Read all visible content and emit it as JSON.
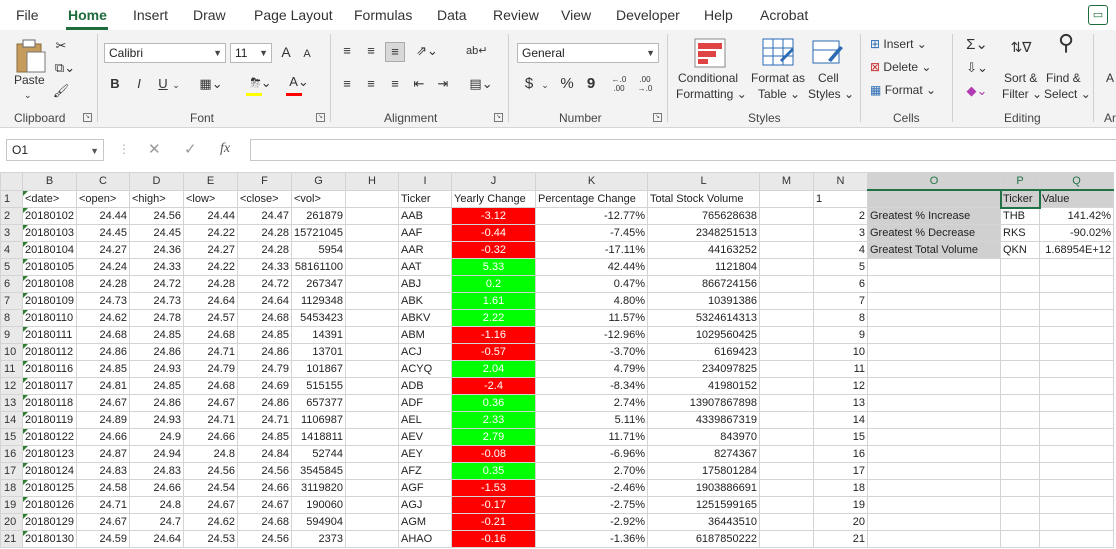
{
  "menu": {
    "tabs": [
      "File",
      "Home",
      "Insert",
      "Draw",
      "Page Layout",
      "Formulas",
      "Data",
      "Review",
      "View",
      "Developer",
      "Help",
      "Acrobat"
    ],
    "active": "Home",
    "comment_icon": "comment-icon"
  },
  "ribbon": {
    "clipboard": {
      "label": "Clipboard",
      "paste": "Paste"
    },
    "font": {
      "label": "Font",
      "name": "Calibri",
      "size": "11",
      "bold": "B",
      "italic": "I",
      "underline": "U",
      "grow": "A",
      "shrink": "A",
      "fill_color": "#ffff00",
      "font_color": "#ff0000"
    },
    "alignment": {
      "label": "Alignment"
    },
    "number": {
      "label": "Number",
      "format": "General",
      "currency": "$",
      "percent": "%",
      "comma": "9",
      "inc_dec": "←.0 .00",
      "dec_dec": ".00 →.0"
    },
    "styles": {
      "label": "Styles",
      "conditional": "Conditional",
      "conditional2": "Formatting",
      "format_as": "Format as",
      "table": "Table",
      "cell": "Cell",
      "styles_btn": "Styles"
    },
    "cells": {
      "label": "Cells",
      "insert": "Insert",
      "delete": "Delete",
      "format": "Format"
    },
    "editing": {
      "label": "Editing",
      "sort": "Sort &",
      "filter": "Filter",
      "find": "Find &",
      "select": "Select"
    },
    "partial": {
      "a_label": "A",
      "a_label2": "Ar"
    }
  },
  "formula_bar": {
    "name_box": "O1",
    "fx": "fx",
    "value": ""
  },
  "columns": [
    "A",
    "B",
    "C",
    "D",
    "E",
    "F",
    "G",
    "H",
    "I",
    "J",
    "K",
    "L",
    "M",
    "N",
    "O",
    "P",
    "Q"
  ],
  "selected_columns": [
    "O",
    "P",
    "Q"
  ],
  "colors": {
    "negative": "#ff0000",
    "positive": "#00ff00",
    "header_gray": "#d0d0d0",
    "accent": "#217346"
  },
  "rows": [
    {
      "n": "1",
      "b": "<date>",
      "c": "<open>",
      "d": "<high>",
      "e": "<low>",
      "f": "<close>",
      "g": "<vol>",
      "i": "Ticker",
      "j": "Yearly Change",
      "k": "Percentage Change",
      "l": "Total Stock Volume",
      "o": "",
      "p": "Ticker",
      "q": "Value"
    },
    {
      "n": "2",
      "b": "20180102",
      "c": "24.44",
      "d": "24.56",
      "e": "24.44",
      "f": "24.47",
      "g": "261879",
      "i": "AAB",
      "j": "-3.12",
      "k": "-12.77%",
      "l": "765628638",
      "o": "Greatest % Increase",
      "p": "THB",
      "q": "141.42%"
    },
    {
      "n": "3",
      "b": "20180103",
      "c": "24.45",
      "d": "24.45",
      "e": "24.22",
      "f": "24.28",
      "g": "15721045",
      "i": "AAF",
      "j": "-0.44",
      "k": "-7.45%",
      "l": "2348251513",
      "o": "Greatest % Decrease",
      "p": "RKS",
      "q": "-90.02%"
    },
    {
      "n": "4",
      "b": "20180104",
      "c": "24.27",
      "d": "24.36",
      "e": "24.27",
      "f": "24.28",
      "g": "5954",
      "i": "AAR",
      "j": "-0.32",
      "k": "-17.11%",
      "l": "44163252",
      "o": "Greatest Total Volume",
      "p": "QKN",
      "q": "1.68954E+12"
    },
    {
      "n": "5",
      "b": "20180105",
      "c": "24.24",
      "d": "24.33",
      "e": "24.22",
      "f": "24.33",
      "g": "58161100",
      "i": "AAT",
      "j": "5.33",
      "k": "42.44%",
      "l": "1121804"
    },
    {
      "n": "6",
      "b": "20180108",
      "c": "24.28",
      "d": "24.72",
      "e": "24.28",
      "f": "24.72",
      "g": "267347",
      "i": "ABJ",
      "j": "0.2",
      "k": "0.47%",
      "l": "866724156"
    },
    {
      "n": "7",
      "b": "20180109",
      "c": "24.73",
      "d": "24.73",
      "e": "24.64",
      "f": "24.64",
      "g": "1129348",
      "i": "ABK",
      "j": "1.61",
      "k": "4.80%",
      "l": "10391386"
    },
    {
      "n": "8",
      "b": "20180110",
      "c": "24.62",
      "d": "24.78",
      "e": "24.57",
      "f": "24.68",
      "g": "5453423",
      "i": "ABKV",
      "j": "2.22",
      "k": "11.57%",
      "l": "5324614313"
    },
    {
      "n": "9",
      "b": "20180111",
      "c": "24.68",
      "d": "24.85",
      "e": "24.68",
      "f": "24.85",
      "g": "14391",
      "i": "ABM",
      "j": "-1.16",
      "k": "-12.96%",
      "l": "1029560425"
    },
    {
      "n": "10",
      "b": "20180112",
      "c": "24.86",
      "d": "24.86",
      "e": "24.71",
      "f": "24.86",
      "g": "13701",
      "i": "ACJ",
      "j": "-0.57",
      "k": "-3.70%",
      "l": "6169423"
    },
    {
      "n": "11",
      "b": "20180116",
      "c": "24.85",
      "d": "24.93",
      "e": "24.79",
      "f": "24.79",
      "g": "101867",
      "i": "ACYQ",
      "j": "2.04",
      "k": "4.79%",
      "l": "234097825"
    },
    {
      "n": "12",
      "b": "20180117",
      "c": "24.81",
      "d": "24.85",
      "e": "24.68",
      "f": "24.69",
      "g": "515155",
      "i": "ADB",
      "j": "-2.4",
      "k": "-8.34%",
      "l": "41980152"
    },
    {
      "n": "13",
      "b": "20180118",
      "c": "24.67",
      "d": "24.86",
      "e": "24.67",
      "f": "24.86",
      "g": "657377",
      "i": "ADF",
      "j": "0.36",
      "k": "2.74%",
      "l": "13907867898"
    },
    {
      "n": "14",
      "b": "20180119",
      "c": "24.89",
      "d": "24.93",
      "e": "24.71",
      "f": "24.71",
      "g": "1106987",
      "i": "AEL",
      "j": "2.33",
      "k": "5.11%",
      "l": "4339867319"
    },
    {
      "n": "15",
      "b": "20180122",
      "c": "24.66",
      "d": "24.9",
      "e": "24.66",
      "f": "24.85",
      "g": "1418811",
      "i": "AEV",
      "j": "2.79",
      "k": "11.71%",
      "l": "843970"
    },
    {
      "n": "16",
      "b": "20180123",
      "c": "24.87",
      "d": "24.94",
      "e": "24.8",
      "f": "24.84",
      "g": "52744",
      "i": "AEY",
      "j": "-0.08",
      "k": "-6.96%",
      "l": "8274367"
    },
    {
      "n": "17",
      "b": "20180124",
      "c": "24.83",
      "d": "24.83",
      "e": "24.56",
      "f": "24.56",
      "g": "3545845",
      "i": "AFZ",
      "j": "0.35",
      "k": "2.70%",
      "l": "175801284"
    },
    {
      "n": "18",
      "b": "20180125",
      "c": "24.58",
      "d": "24.66",
      "e": "24.54",
      "f": "24.66",
      "g": "3119820",
      "i": "AGF",
      "j": "-1.53",
      "k": "-2.46%",
      "l": "1903886691"
    },
    {
      "n": "19",
      "b": "20180126",
      "c": "24.71",
      "d": "24.8",
      "e": "24.67",
      "f": "24.67",
      "g": "190060",
      "i": "AGJ",
      "j": "-0.17",
      "k": "-2.75%",
      "l": "1251599165"
    },
    {
      "n": "20",
      "b": "20180129",
      "c": "24.67",
      "d": "24.7",
      "e": "24.62",
      "f": "24.68",
      "g": "594904",
      "i": "AGM",
      "j": "-0.21",
      "k": "-2.92%",
      "l": "36443510"
    },
    {
      "n": "21",
      "b": "20180130",
      "c": "24.59",
      "d": "24.64",
      "e": "24.53",
      "f": "24.56",
      "g": "2373",
      "i": "AHAO",
      "j": "-0.16",
      "k": "-1.36%",
      "l": "6187850222"
    }
  ]
}
